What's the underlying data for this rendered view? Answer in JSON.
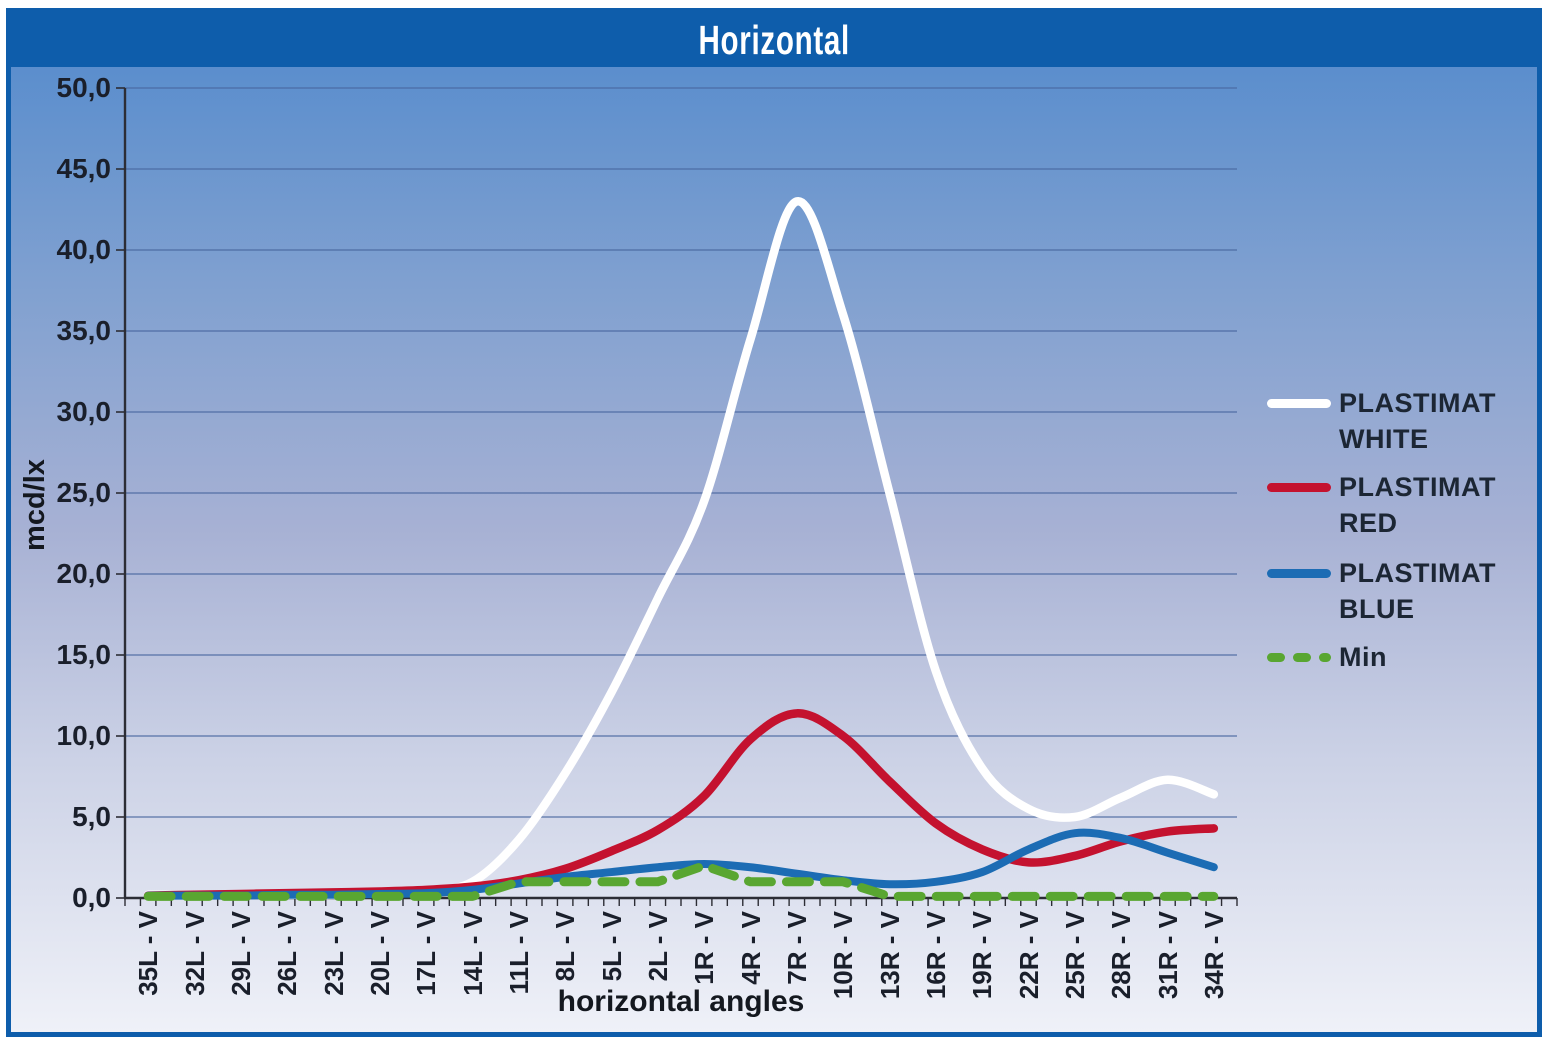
{
  "page": {
    "title": "Horizontal"
  },
  "colors": {
    "frame_blue": "#0e5dab",
    "background_top": "#5b8ecd",
    "background_bottom": "#eff1f8",
    "gridline": "#4a67a0",
    "axis": "#2c2d35",
    "text": "#1a1f2b",
    "series_white": "#ffffff",
    "series_red": "#c4122f",
    "series_blue": "#1c6cb4",
    "series_min_green": "#59a631"
  },
  "chart_data": {
    "type": "line",
    "title": "Horizontal",
    "xlabel": "horizontal angles",
    "ylabel": "mcd/lx",
    "ylim": [
      0,
      50
    ],
    "y_tick_step": 5,
    "y_tick_labels": [
      "0,0",
      "5,0",
      "10,0",
      "15,0",
      "20,0",
      "25,0",
      "30,0",
      "35,0",
      "40,0",
      "45,0",
      "50,0"
    ],
    "grid": "horizontal-only",
    "legend_position": "right",
    "categories": [
      "35L - V",
      "32L - V",
      "29L - V",
      "26L - V",
      "23L - V",
      "20L - V",
      "17L - V",
      "14L - V",
      "11L - V",
      "8L - V",
      "5L - V",
      "2L - V",
      "1R - V",
      "4R - V",
      "7R - V",
      "10R - V",
      "13R - V",
      "16R - V",
      "19R - V",
      "22R - V",
      "25R - V",
      "28R - V",
      "31R - V",
      "34R - V"
    ],
    "series": [
      {
        "name": "PLASTIMAT WHITE",
        "color": "#ffffff",
        "style": "solid",
        "smooth": true,
        "values": [
          0.2,
          0.2,
          0.2,
          0.2,
          0.2,
          0.3,
          0.4,
          1.0,
          3.6,
          7.7,
          12.7,
          18.5,
          24.5,
          34.5,
          43.0,
          36.0,
          25.0,
          14.0,
          8.0,
          5.5,
          5.0,
          6.2,
          7.3,
          6.4
        ]
      },
      {
        "name": "PLASTIMAT RED",
        "color": "#c4122f",
        "style": "solid",
        "smooth": true,
        "values": [
          0.15,
          0.2,
          0.25,
          0.3,
          0.35,
          0.4,
          0.5,
          0.7,
          1.1,
          1.8,
          2.9,
          4.2,
          6.3,
          9.8,
          11.4,
          10.0,
          7.2,
          4.6,
          3.0,
          2.2,
          2.6,
          3.5,
          4.1,
          4.3
        ]
      },
      {
        "name": "PLASTIMAT BLUE",
        "color": "#1c6cb4",
        "style": "solid",
        "smooth": true,
        "values": [
          0.15,
          0.15,
          0.15,
          0.2,
          0.2,
          0.25,
          0.3,
          0.5,
          0.9,
          1.3,
          1.6,
          1.9,
          2.1,
          1.9,
          1.5,
          1.1,
          0.85,
          1.0,
          1.6,
          3.0,
          4.0,
          3.7,
          2.8,
          1.9
        ]
      },
      {
        "name": "Min",
        "color": "#59a631",
        "style": "dashed",
        "smooth": false,
        "values": [
          0.1,
          0.1,
          0.1,
          0.1,
          0.1,
          0.1,
          0.1,
          0.1,
          1.0,
          1.0,
          1.0,
          1.0,
          2.0,
          1.0,
          1.0,
          1.0,
          0.1,
          0.1,
          0.1,
          0.1,
          0.1,
          0.1,
          0.1,
          0.1
        ]
      }
    ]
  }
}
